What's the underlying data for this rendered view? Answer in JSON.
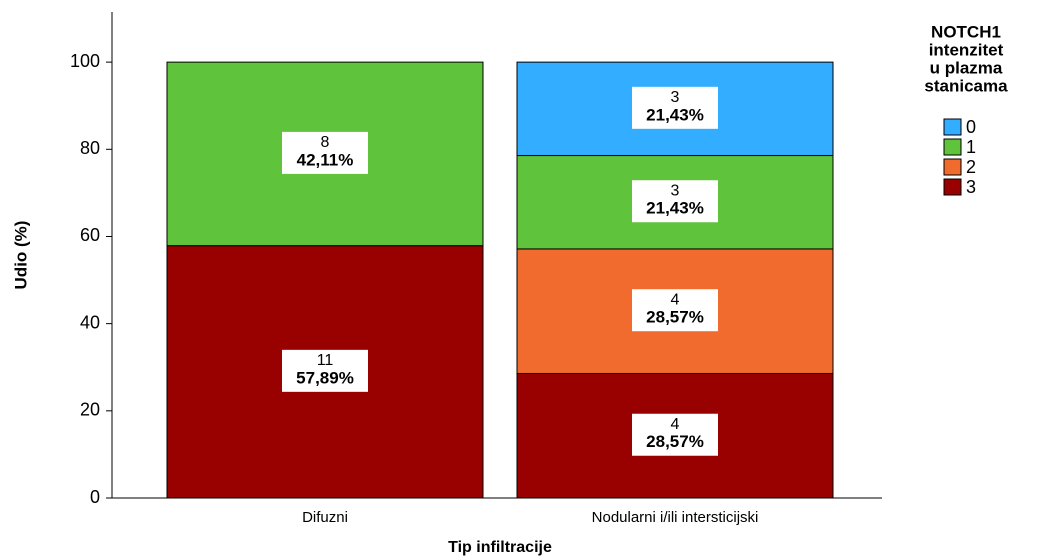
{
  "chart_data": {
    "type": "stacked_bar",
    "categories": [
      "Difuzni",
      "Nodularni i/ili intersticijski"
    ],
    "xlabel": "Tip infiltracije",
    "ylabel": "Udio (%)",
    "legend_title": [
      "NOTCH1",
      "intenzitet",
      "u plazma",
      "stanicama"
    ],
    "legend": "right",
    "ylim": [
      0,
      111.5
    ],
    "yticks": [
      0,
      20,
      40,
      60,
      80,
      100
    ],
    "series": [
      {
        "name": "0",
        "color": "#33adff",
        "values": [
          null,
          21.43
        ],
        "value_labels": [
          null,
          "21,43%"
        ],
        "counts": [
          null,
          3
        ]
      },
      {
        "name": "1",
        "color": "#5fc43b",
        "values": [
          42.11,
          21.43
        ],
        "value_labels": [
          "42,11%",
          "21,43%"
        ],
        "counts": [
          8,
          3
        ]
      },
      {
        "name": "2",
        "color": "#f26b2e",
        "values": [
          null,
          28.57
        ],
        "value_labels": [
          null,
          "28,57%"
        ],
        "counts": [
          null,
          4
        ]
      },
      {
        "name": "3",
        "color": "#990000",
        "values": [
          57.89,
          28.57
        ],
        "value_labels": [
          "57,89%",
          "28,57%"
        ],
        "counts": [
          11,
          4
        ]
      }
    ]
  }
}
